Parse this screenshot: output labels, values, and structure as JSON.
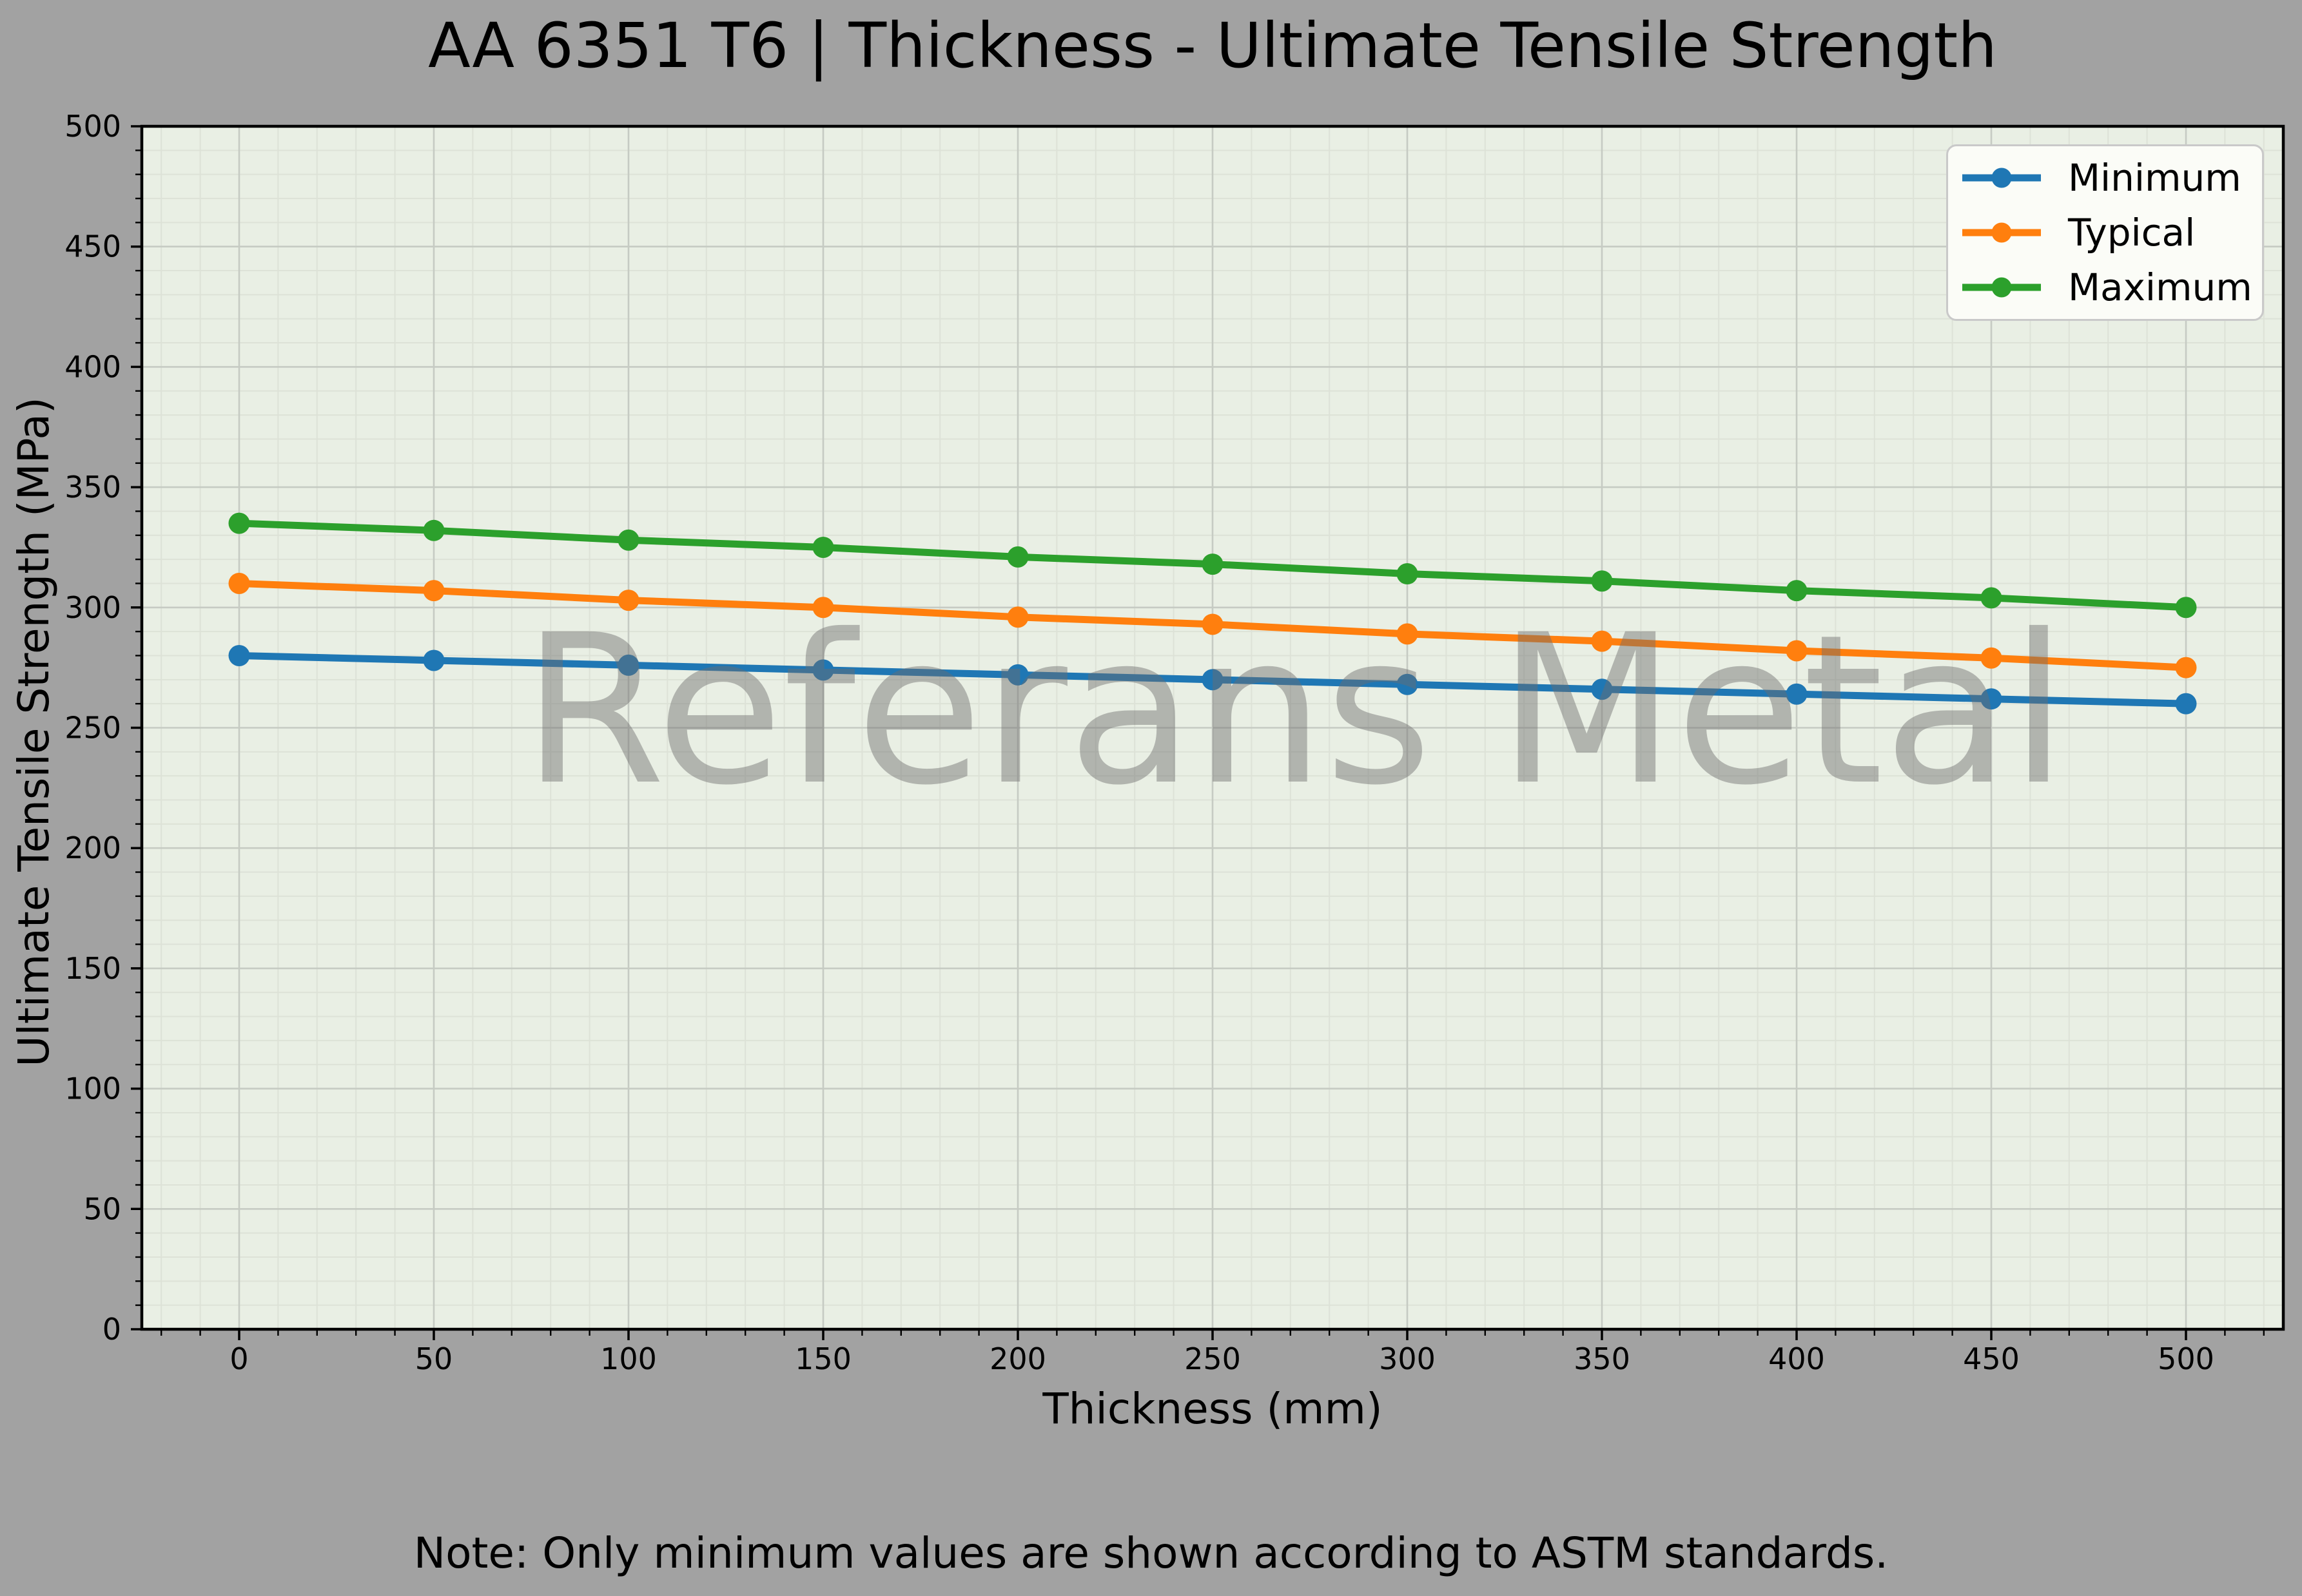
{
  "figure": {
    "title": "AA 6351 T6 | Thickness - Ultimate Tensile Strength",
    "note": "Note: Only minimum values are shown according to ASTM standards.",
    "watermark": "Referans Metal",
    "background_color": "#a2a2a2",
    "plot_background_color": "#e9efe4",
    "major_grid_color": "#c6cbc3",
    "minor_grid_color": "#dde2d7",
    "spine_color": "#000000",
    "legend_background": "#fbfcf7",
    "legend_border": "#c9c9c9"
  },
  "chart_data": {
    "type": "line",
    "title": "AA 6351 T6 | Thickness - Ultimate Tensile Strength",
    "xlabel": "Thickness (mm)",
    "ylabel": "Ultimate Tensile Strength (MPa)",
    "x": [
      0,
      50,
      100,
      150,
      200,
      250,
      300,
      350,
      400,
      450,
      500
    ],
    "series": [
      {
        "name": "Minimum",
        "color": "#1f77b4",
        "values": [
          280,
          278,
          276,
          274,
          272,
          270,
          268,
          266,
          264,
          262,
          260
        ]
      },
      {
        "name": "Typical",
        "color": "#ff7f0e",
        "values": [
          310,
          307,
          303,
          300,
          296,
          293,
          289,
          286,
          282,
          279,
          275
        ]
      },
      {
        "name": "Maximum",
        "color": "#2ca02c",
        "values": [
          335,
          332,
          328,
          325,
          321,
          318,
          314,
          311,
          307,
          304,
          300
        ]
      }
    ],
    "xlim": [
      -25,
      525
    ],
    "ylim": [
      0,
      500
    ],
    "x_ticks": [
      0,
      50,
      100,
      150,
      200,
      250,
      300,
      350,
      400,
      450,
      500
    ],
    "y_ticks": [
      0,
      50,
      100,
      150,
      200,
      250,
      300,
      350,
      400,
      450,
      500
    ],
    "minor_tick_step_x": 10,
    "minor_tick_step_y": 10,
    "grid": true,
    "legend_position": "upper right"
  }
}
